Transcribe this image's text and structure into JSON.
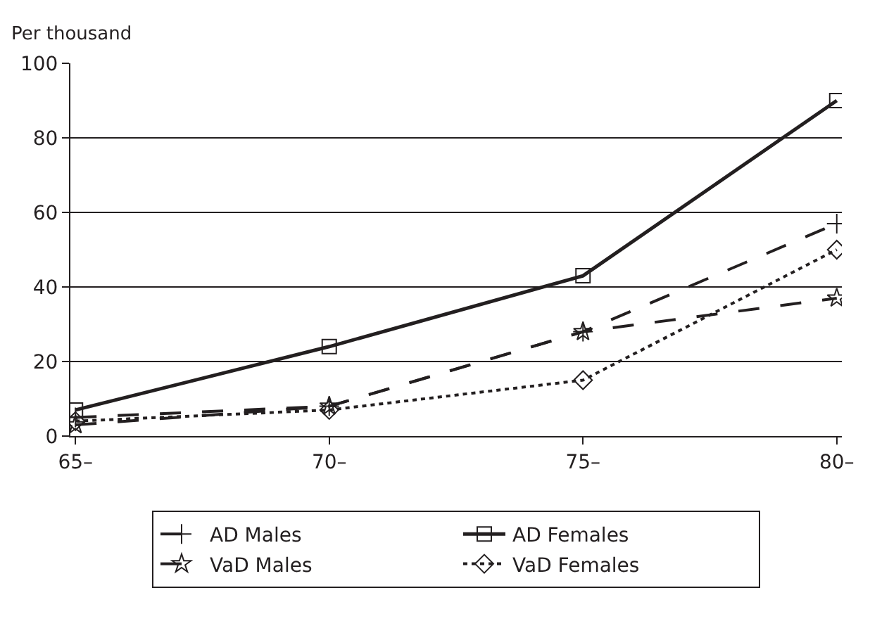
{
  "chart_data": {
    "type": "line",
    "ylabel": "Per thousand",
    "categories": [
      "65–",
      "70–",
      "75–",
      "80–"
    ],
    "series": [
      {
        "name": "AD Males",
        "color": "#231f20",
        "values": [
          5,
          8,
          28,
          57
        ],
        "marker": "cross",
        "line_style": "dashed"
      },
      {
        "name": "AD Females",
        "color": "#231f20",
        "values": [
          7,
          24,
          43,
          90
        ],
        "marker": "square",
        "line_style": "solid"
      },
      {
        "name": "VaD Males",
        "color": "#231f20",
        "values": [
          3,
          8,
          28,
          37
        ],
        "marker": "star",
        "line_style": "dashed"
      },
      {
        "name": "VaD Females",
        "color": "#231f20",
        "values": [
          4,
          7,
          15,
          50
        ],
        "marker": "diamond",
        "line_style": "dotted"
      }
    ],
    "ylim": [
      0,
      100
    ],
    "yticks": [
      0,
      20,
      40,
      60,
      80,
      100
    ],
    "grid": "y",
    "legend": "bottom"
  }
}
